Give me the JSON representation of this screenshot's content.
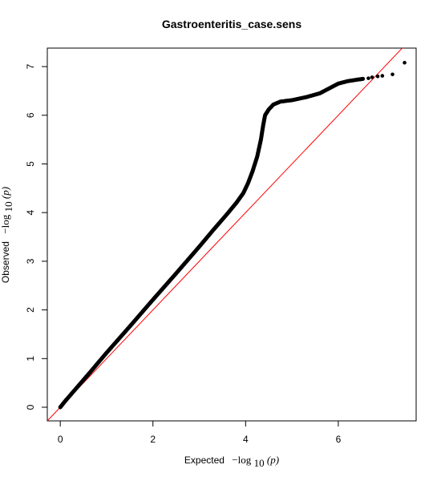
{
  "chart_data": {
    "type": "scatter",
    "title": "Gastroenteritis_case.sens",
    "xlabel": {
      "prefix": "Expected",
      "expr": "−log",
      "sub": "10",
      "arg": "(p)"
    },
    "ylabel": {
      "prefix": "Observed",
      "expr": "−log",
      "sub": "10",
      "arg": "(p)"
    },
    "xlim": [
      -0.28,
      7.68
    ],
    "ylim": [
      -0.28,
      7.38
    ],
    "xticks": [
      0,
      2,
      4,
      6
    ],
    "yticks": [
      0,
      1,
      2,
      3,
      4,
      5,
      6,
      7
    ],
    "grid": false,
    "reference_line": {
      "slope": 1,
      "intercept": 0,
      "color": "#ff0000"
    },
    "point_color": "#000000",
    "series": [
      {
        "points": [
          [
            0.0,
            0.0
          ],
          [
            0.1,
            0.12
          ],
          [
            0.3,
            0.34
          ],
          [
            0.6,
            0.67
          ],
          [
            1.0,
            1.12
          ],
          [
            1.5,
            1.66
          ],
          [
            2.0,
            2.21
          ],
          [
            2.5,
            2.75
          ],
          [
            3.0,
            3.3
          ],
          [
            3.3,
            3.64
          ],
          [
            3.6,
            3.97
          ],
          [
            3.8,
            4.2
          ],
          [
            3.95,
            4.4
          ],
          [
            4.05,
            4.6
          ],
          [
            4.15,
            4.85
          ],
          [
            4.25,
            5.15
          ],
          [
            4.33,
            5.5
          ],
          [
            4.38,
            5.8
          ],
          [
            4.42,
            6.0
          ],
          [
            4.5,
            6.12
          ],
          [
            4.6,
            6.22
          ],
          [
            4.75,
            6.28
          ],
          [
            5.0,
            6.31
          ],
          [
            5.3,
            6.37
          ],
          [
            5.6,
            6.45
          ],
          [
            5.8,
            6.55
          ],
          [
            6.0,
            6.65
          ],
          [
            6.2,
            6.7
          ],
          [
            6.4,
            6.73
          ],
          [
            6.55,
            6.75
          ],
          [
            6.6,
            6.76
          ],
          [
            6.7,
            6.76
          ],
          [
            6.8,
            6.78
          ],
          [
            6.9,
            6.8
          ],
          [
            7.1,
            6.83
          ],
          [
            7.2,
            6.85
          ],
          [
            7.4,
            7.08
          ]
        ],
        "isolated_points": [
          [
            6.5,
            6.74
          ],
          [
            6.65,
            6.76
          ],
          [
            6.73,
            6.78
          ],
          [
            6.85,
            6.8
          ],
          [
            6.95,
            6.81
          ],
          [
            7.17,
            6.84
          ],
          [
            7.43,
            7.08
          ]
        ]
      }
    ]
  }
}
